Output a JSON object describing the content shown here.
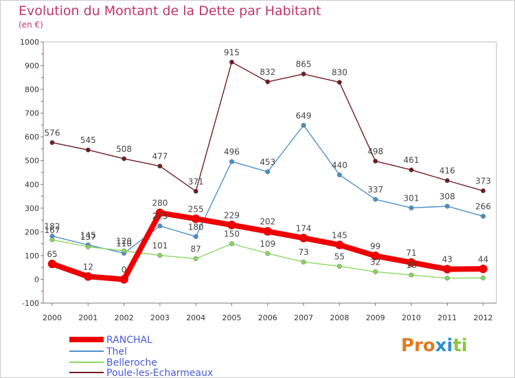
{
  "chart_data": {
    "type": "line",
    "title": "Evolution du Montant de la Dette par Habitant",
    "subtitle": "(en €)",
    "x": [
      "2000",
      "2001",
      "2002",
      "2003",
      "2004",
      "2005",
      "2006",
      "2007",
      "2008",
      "2009",
      "2010",
      "2011",
      "2012"
    ],
    "ylim": [
      -100,
      1000
    ],
    "yticks": [
      -100,
      0,
      100,
      200,
      300,
      400,
      500,
      600,
      700,
      800,
      900,
      1000
    ],
    "grid": false,
    "legend_position": "bottom-left",
    "series": [
      {
        "name": "RANCHAL",
        "color": "#ee0000",
        "values": [
          65,
          12,
          0,
          280,
          255,
          229,
          202,
          174,
          145,
          99,
          71,
          43,
          44
        ],
        "labels": [
          "65",
          "12",
          "0",
          "280",
          "255",
          "229",
          "202",
          "174",
          "145",
          "99",
          "71",
          "43",
          "44"
        ]
      },
      {
        "name": "Thel",
        "color": "#4a90c8",
        "values": [
          182,
          145,
          110,
          225,
          180,
          496,
          453,
          649,
          440,
          337,
          301,
          308,
          266
        ],
        "labels": [
          "182",
          "145",
          "110",
          "225",
          "180",
          "496",
          "453",
          "649",
          "440",
          "337",
          "301",
          "308",
          "266"
        ]
      },
      {
        "name": "Belleroche",
        "color": "#88d860",
        "values": [
          167,
          137,
          120,
          101,
          87,
          150,
          109,
          73,
          55,
          32,
          18,
          5,
          6
        ],
        "labels": [
          "167",
          "137",
          "120",
          "101",
          "87",
          "150",
          "109",
          "73",
          "55",
          "32",
          "18",
          "",
          ""
        ]
      },
      {
        "name": "Poule-les-Echarmeaux",
        "color": "#6e1c24",
        "values": [
          576,
          545,
          508,
          477,
          371,
          915,
          832,
          865,
          830,
          498,
          461,
          416,
          373
        ],
        "labels": [
          "576",
          "545",
          "508",
          "477",
          "371",
          "915",
          "832",
          "865",
          "830",
          "498",
          "461",
          "416",
          "373"
        ]
      }
    ]
  },
  "logo": {
    "text": "Proxiti",
    "colors": [
      "#e07a20",
      "#e07a20",
      "#e07a20",
      "#2a90d0",
      "#2a90d0",
      "#8cc63e",
      "#8cc63e"
    ]
  }
}
